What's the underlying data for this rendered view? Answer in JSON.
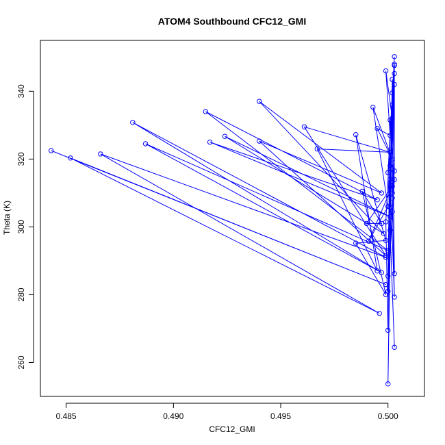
{
  "chart_data": {
    "type": "line",
    "title": "ATOM4 Southbound CFC12_GMI",
    "xlabel": "CFC12_GMI",
    "ylabel": "Theta (K)",
    "xlim": [
      0.4838,
      0.5017
    ],
    "ylim": [
      250.0,
      355.0
    ],
    "xticks": [
      0.485,
      0.49,
      0.495,
      0.5
    ],
    "xtick_labels": [
      "0.485",
      "0.490",
      "0.495",
      "0.500"
    ],
    "yticks": [
      260,
      280,
      300,
      320,
      340
    ],
    "ytick_labels": [
      "260",
      "280",
      "300",
      "320",
      "340"
    ],
    "grid": false,
    "legend": "none",
    "color": "#0000ff",
    "series": [
      {
        "x": [
          0.4843,
          0.4999,
          0.4852,
          0.4996,
          0.4866,
          0.4999,
          0.4881,
          0.4997,
          0.4887,
          0.5,
          0.4915,
          0.4995,
          0.4917,
          0.5001,
          0.4924,
          0.4998,
          0.494,
          0.4997,
          0.494,
          0.4999,
          0.4961,
          0.5001,
          0.4967,
          0.4995,
          0.4985,
          0.4999,
          0.4985,
          0.4999,
          0.4988,
          0.4997,
          0.499,
          0.5002,
          0.4991,
          0.5,
          0.4993,
          0.5002,
          0.4995,
          0.5001,
          0.4999,
          0.5002,
          0.5,
          0.5001,
          0.5003,
          0.5,
          0.5003,
          0.4999,
          0.5,
          0.5001,
          0.5003,
          0.5002,
          0.5003,
          0.5001,
          0.5002,
          0.5003,
          0.5002,
          0.5001,
          0.5003,
          0.5002,
          0.5,
          0.5001,
          0.5003,
          0.5,
          0.5002,
          0.5003,
          0.5003,
          0.5002,
          0.5003,
          0.5001
        ],
        "y": [
          322.5,
          283.0,
          320.3,
          274.5,
          321.5,
          291.0,
          330.8,
          286.5,
          324.5,
          293.0,
          334.0,
          308.0,
          325.0,
          303.0,
          326.7,
          298.0,
          337.0,
          310.0,
          325.3,
          291.5,
          329.5,
          322.0,
          323.0,
          287.0,
          327.2,
          296.0,
          295.2,
          280.0,
          310.5,
          301.0,
          301.0,
          312.0,
          295.8,
          306.0,
          335.3,
          320.0,
          329.0,
          327.0,
          346.0,
          332.0,
          253.7,
          299.0,
          264.5,
          316.0,
          350.2,
          301.5,
          269.5,
          318.0,
          348.0,
          310.0,
          279.3,
          314.0,
          343.5,
          286.2,
          339.5,
          305.8,
          347.6,
          304.5,
          285.5,
          331.5,
          313.9,
          281.0,
          336.0,
          342.0,
          316.5,
          308.5,
          345.2,
          312.5
        ]
      }
    ]
  }
}
